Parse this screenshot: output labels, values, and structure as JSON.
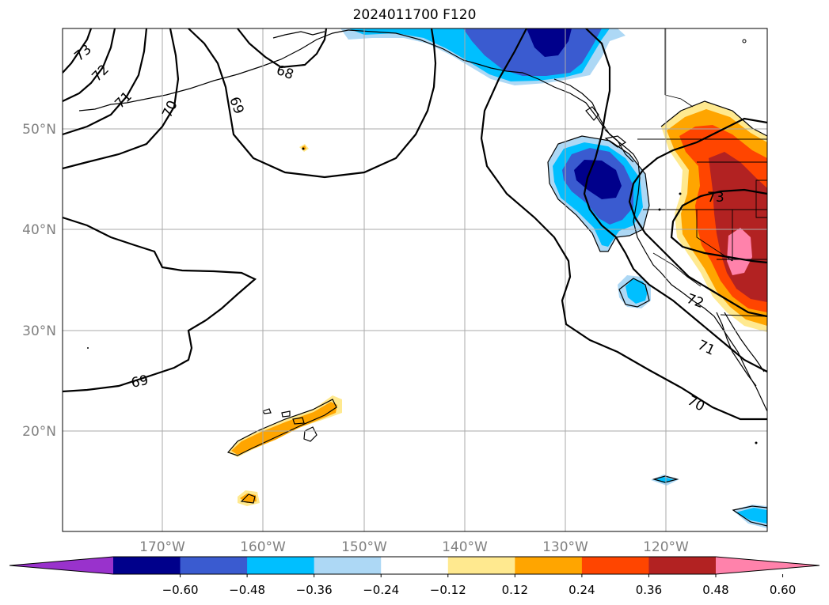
{
  "title": "2024011700 F120",
  "map": {
    "lat_labels": [
      "50°N",
      "40°N",
      "30°N",
      "20°N"
    ],
    "lon_labels": [
      "170°W",
      "160°W",
      "150°W",
      "140°W",
      "130°W",
      "120°W"
    ],
    "contour_labels": [
      "73",
      "72",
      "71",
      "70",
      "69",
      "68",
      "69",
      "73",
      "72",
      "71",
      "70"
    ]
  },
  "colorbar": {
    "colors": [
      "#9932cc",
      "#00008b",
      "#3a5bd0",
      "#00bfff",
      "#add8f5",
      "#ffffff",
      "#ffe98f",
      "#ffa500",
      "#ff4500",
      "#b22222",
      "#ff82ab"
    ],
    "labels": [
      "−0.60",
      "−0.48",
      "−0.36",
      "−0.24",
      "−0.12",
      "0.12",
      "0.24",
      "0.36",
      "0.48",
      "0.60"
    ]
  }
}
